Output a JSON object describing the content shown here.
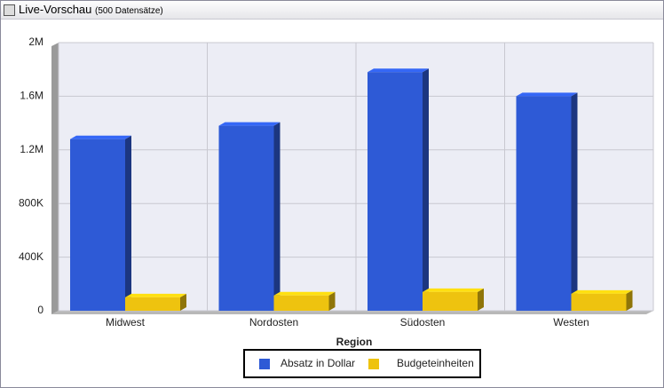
{
  "panel": {
    "title": "Live-Vorschau",
    "subtitle": "(500 Datensätze)"
  },
  "chart_data": {
    "type": "bar3d",
    "x_label": "Region",
    "categories": [
      "Midwest",
      "Nordosten",
      "Südosten",
      "Westen"
    ],
    "series": [
      {
        "name": "Absatz in Dollar",
        "color": "#2e5ad6",
        "values": [
          1280000,
          1380000,
          1780000,
          1600000
        ]
      },
      {
        "name": "Budgeteinheiten",
        "color": "#eec30f",
        "values": [
          100000,
          114000,
          140000,
          127000
        ]
      }
    ],
    "ylim": [
      0,
      2000000
    ],
    "yticks": [
      0,
      {
        "value": 400000,
        "label": "400K"
      },
      {
        "value": 800000,
        "label": "800K"
      },
      {
        "value": 1200000,
        "label": "1.2M"
      },
      {
        "value": 1600000,
        "label": "1.6M"
      },
      {
        "value": 2000000,
        "label": "2M"
      }
    ],
    "grid": true
  }
}
